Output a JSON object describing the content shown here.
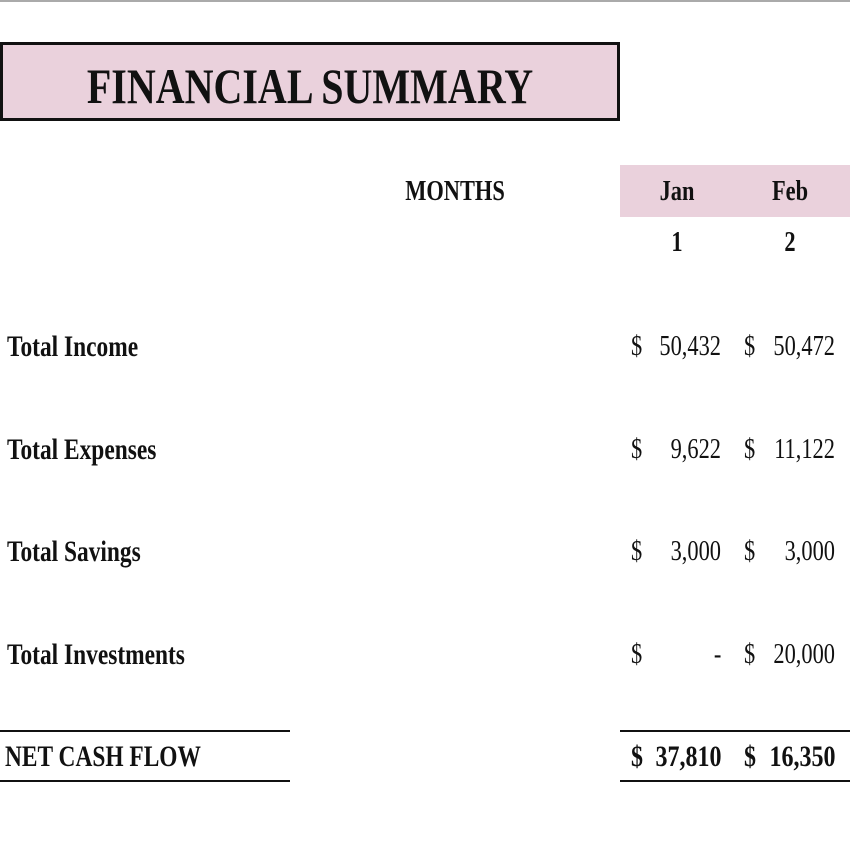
{
  "header": {
    "title": "FINANCIAL SUMMARY"
  },
  "table": {
    "months_label": "MONTHS",
    "columns": [
      {
        "month": "Jan",
        "number": "1"
      },
      {
        "month": "Feb",
        "number": "2"
      }
    ],
    "rows": [
      {
        "label": "Total Income",
        "cells": [
          {
            "symbol": "$",
            "amount": "50,432"
          },
          {
            "symbol": "$",
            "amount": "50,472"
          }
        ]
      },
      {
        "label": "Total Expenses",
        "cells": [
          {
            "symbol": "$",
            "amount": "9,622"
          },
          {
            "symbol": "$",
            "amount": "11,122"
          }
        ]
      },
      {
        "label": "Total Savings",
        "cells": [
          {
            "symbol": "$",
            "amount": "3,000"
          },
          {
            "symbol": "$",
            "amount": "3,000"
          }
        ]
      },
      {
        "label": "Total Investments",
        "cells": [
          {
            "symbol": "$",
            "amount": "-"
          },
          {
            "symbol": "$",
            "amount": "20,000"
          }
        ]
      }
    ],
    "total": {
      "label": "NET CASH FLOW",
      "cells": [
        {
          "symbol": "$",
          "amount": "37,810"
        },
        {
          "symbol": "$",
          "amount": "16,350"
        }
      ]
    }
  }
}
